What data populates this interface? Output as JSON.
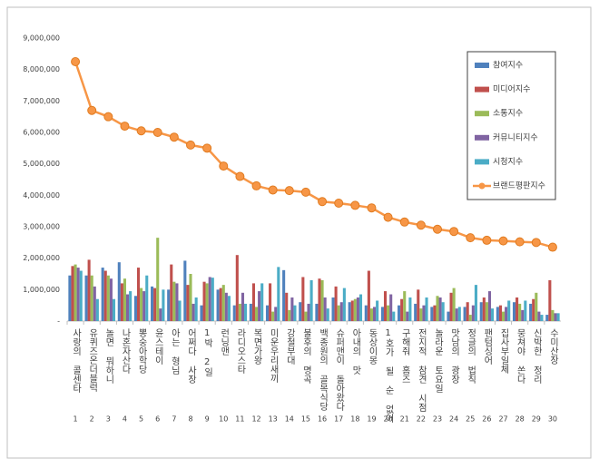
{
  "chart_data": {
    "type": "bar-line",
    "categories": [
      "사랑의 콜센타",
      "유퀴즈온더블럭",
      "놀면 뭐하니",
      "나혼자산다",
      "뽕숭아학당",
      "윤스테이",
      "아는 형님",
      "어쩌다 사장",
      "1박 2일",
      "런닝맨",
      "라디오스타",
      "복면가왕",
      "미운우리새끼",
      "강철부대",
      "불후의 명곡",
      "백종원의 골목식당",
      "슈퍼맨이 돌아왔다",
      "아내의 맛",
      "동상이몽",
      "1호가 될 순 없어",
      "구해줘 홈즈",
      "전지적 참견 시점",
      "놀라운 토요일",
      "맛남의 광장",
      "정글의 법칙",
      "팬텀싱어",
      "집사부일체",
      "뭉쳐야 쏜다",
      "신박한 정리",
      "수미산장"
    ],
    "ranks": [
      1,
      2,
      3,
      4,
      5,
      6,
      7,
      8,
      9,
      10,
      11,
      12,
      13,
      14,
      15,
      16,
      17,
      18,
      19,
      20,
      21,
      22,
      23,
      24,
      25,
      26,
      27,
      28,
      29,
      30
    ],
    "series": [
      {
        "name": "참여지수",
        "color": "#4f81bd",
        "kind": "bar",
        "values": [
          1450000,
          1450000,
          1700000,
          1870000,
          800000,
          1100000,
          1000000,
          1920000,
          500000,
          1000000,
          500000,
          550000,
          500000,
          1620000,
          600000,
          550000,
          750000,
          600000,
          500000,
          450000,
          500000,
          550000,
          450000,
          300000,
          450000,
          600000,
          450000,
          600000,
          550000,
          200000
        ]
      },
      {
        "name": "미디어지수",
        "color": "#c0504d",
        "kind": "bar",
        "values": [
          1750000,
          1950000,
          1600000,
          1200000,
          1700000,
          1050000,
          1800000,
          1150000,
          1250000,
          1050000,
          2100000,
          1200000,
          1200000,
          900000,
          1400000,
          1350000,
          1100000,
          650000,
          1600000,
          950000,
          700000,
          1000000,
          500000,
          900000,
          600000,
          750000,
          500000,
          750000,
          700000,
          1300000
        ]
      },
      {
        "name": "소통지수",
        "color": "#9bbb59",
        "kind": "bar",
        "values": [
          1800000,
          1450000,
          1450000,
          1350000,
          1050000,
          2650000,
          1250000,
          1500000,
          1200000,
          1150000,
          550000,
          450000,
          300000,
          350000,
          300000,
          1300000,
          500000,
          700000,
          400000,
          500000,
          950000,
          400000,
          800000,
          1050000,
          200000,
          600000,
          300000,
          550000,
          900000,
          350000
        ]
      },
      {
        "name": "커뮤니티지수",
        "color": "#8064a2",
        "kind": "bar",
        "values": [
          1700000,
          1100000,
          1350000,
          850000,
          950000,
          400000,
          1200000,
          550000,
          1400000,
          900000,
          900000,
          950000,
          450000,
          750000,
          550000,
          750000,
          600000,
          750000,
          450000,
          850000,
          300000,
          500000,
          750000,
          400000,
          500000,
          950000,
          450000,
          350000,
          300000,
          250000
        ]
      },
      {
        "name": "시청지수",
        "color": "#4bacc6",
        "kind": "bar",
        "values": [
          1600000,
          700000,
          700000,
          950000,
          1450000,
          1000000,
          650000,
          750000,
          1380000,
          800000,
          550000,
          1200000,
          1720000,
          500000,
          1300000,
          400000,
          1050000,
          850000,
          650000,
          300000,
          750000,
          750000,
          600000,
          450000,
          1150000,
          400000,
          650000,
          650000,
          200000,
          250000
        ]
      },
      {
        "name": "브랜드평판지수",
        "color": "#f79646",
        "kind": "line",
        "values": [
          8250000,
          6700000,
          6500000,
          6200000,
          6050000,
          6000000,
          5850000,
          5600000,
          5500000,
          4930000,
          4600000,
          4300000,
          4170000,
          4150000,
          4100000,
          3800000,
          3750000,
          3680000,
          3600000,
          3300000,
          3150000,
          3050000,
          2920000,
          2850000,
          2650000,
          2570000,
          2550000,
          2520000,
          2500000,
          2350000
        ]
      }
    ],
    "ylim": [
      0,
      9000000
    ],
    "yticks": [
      {
        "value": 0,
        "label": "-"
      },
      {
        "value": 1000000,
        "label": "1,000,000"
      },
      {
        "value": 2000000,
        "label": "2,000,000"
      },
      {
        "value": 3000000,
        "label": "3,000,000"
      },
      {
        "value": 4000000,
        "label": "4,000,000"
      },
      {
        "value": 5000000,
        "label": "5,000,000"
      },
      {
        "value": 6000000,
        "label": "6,000,000"
      },
      {
        "value": 7000000,
        "label": "7,000,000"
      },
      {
        "value": 8000000,
        "label": "8,000,000"
      },
      {
        "value": 9000000,
        "label": "9,000,000"
      }
    ],
    "grid": false,
    "legend": "top-right"
  }
}
